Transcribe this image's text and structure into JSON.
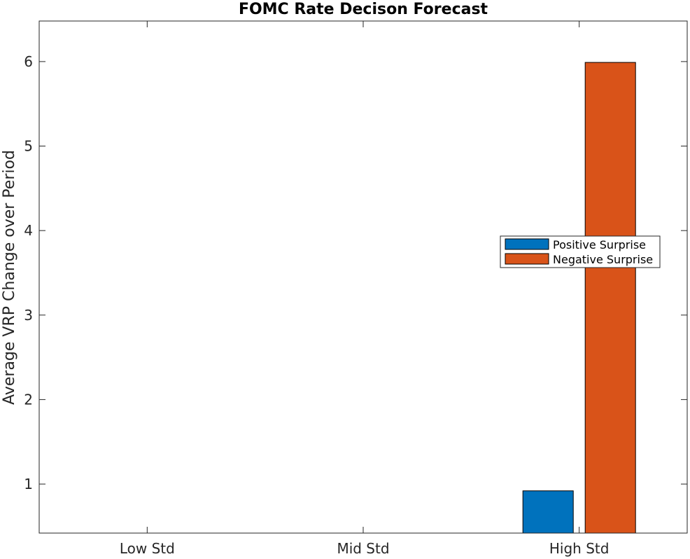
{
  "chart_data": {
    "type": "bar",
    "title": "FOMC Rate Decison Forecast",
    "xlabel": "",
    "ylabel": "Average VRP Change over Period",
    "categories": [
      "Low Std",
      "Mid Std",
      "High Std"
    ],
    "series": [
      {
        "name": "Positive Surprise",
        "color": "#0072BD",
        "values": [
          0,
          0,
          0.92
        ]
      },
      {
        "name": "Negative Surprise",
        "color": "#D95319",
        "values": [
          0,
          0,
          5.99
        ]
      }
    ],
    "ylim": [
      0.42,
      6.48
    ],
    "yticks": [
      1,
      2,
      3,
      4,
      5,
      6
    ],
    "grid": false,
    "legend_position": "right"
  }
}
